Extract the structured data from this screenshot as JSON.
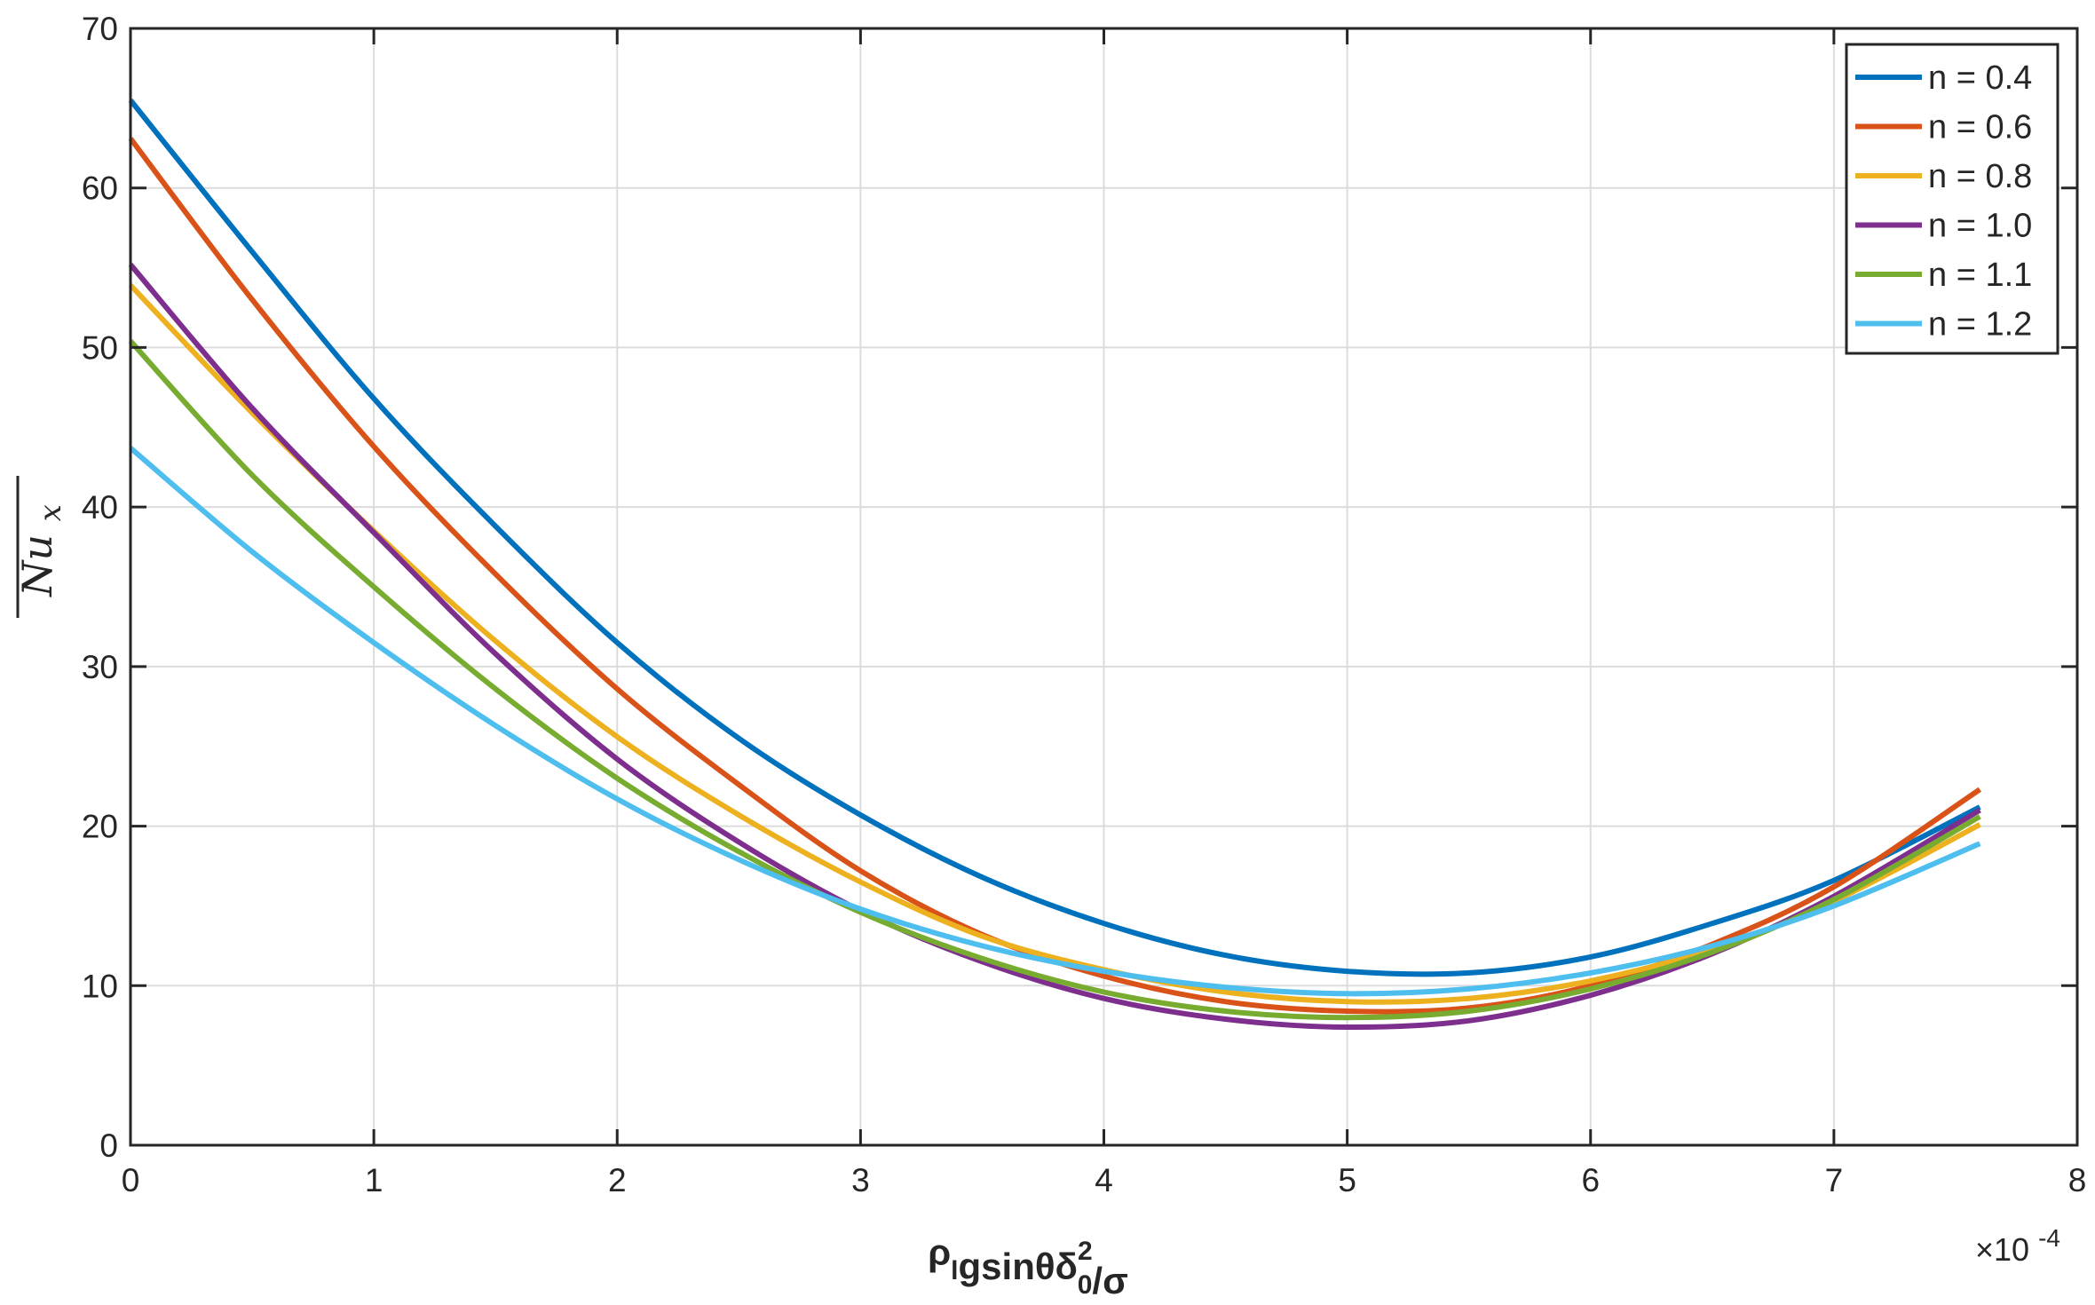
{
  "chart_data": {
    "type": "line",
    "title": "",
    "xlabel": {
      "parts": [
        {
          "text": "ρ"
        },
        {
          "text": "l",
          "sub": true
        },
        {
          "text": "gsinθδ"
        },
        {
          "text": "0",
          "sub": true,
          "sup": "2"
        },
        {
          "text": "/σ"
        }
      ]
    },
    "ylabel": "Nu",
    "ylabel_sub": "x",
    "x_multiplier_label": "×10",
    "x_multiplier_exponent": "-4",
    "xlim": [
      0,
      8
    ],
    "ylim": [
      0,
      70
    ],
    "x_ticks": [
      "0",
      "1",
      "2",
      "3",
      "4",
      "5",
      "6",
      "7",
      "8"
    ],
    "y_ticks": [
      "0",
      "10",
      "20",
      "30",
      "40",
      "50",
      "60",
      "70"
    ],
    "grid": true,
    "legend_position": "top-right",
    "series": [
      {
        "name": "n = 0.4",
        "color": "#0072BD",
        "x": [
          0,
          0.5,
          1,
          1.5,
          2,
          2.5,
          3,
          3.5,
          4,
          4.5,
          5,
          5.5,
          6,
          6.5,
          7,
          7.6
        ],
        "y": [
          65.5,
          56.0,
          46.8,
          38.8,
          31.5,
          25.5,
          20.7,
          16.8,
          13.9,
          11.9,
          10.9,
          10.8,
          11.8,
          13.9,
          16.6,
          21.2
        ]
      },
      {
        "name": "n = 0.6",
        "color": "#D95319",
        "x": [
          0,
          0.5,
          1,
          1.5,
          2,
          2.5,
          3,
          3.5,
          4,
          4.5,
          5,
          5.5,
          6,
          6.5,
          7,
          7.6
        ],
        "y": [
          63.1,
          53.0,
          43.8,
          35.8,
          28.6,
          22.6,
          17.2,
          13.2,
          10.6,
          9.0,
          8.4,
          8.6,
          10.0,
          12.6,
          16.2,
          22.3
        ]
      },
      {
        "name": "n = 0.8",
        "color": "#EDB120",
        "x": [
          0,
          0.5,
          1,
          1.5,
          2,
          2.5,
          3,
          3.5,
          4,
          4.5,
          5,
          5.5,
          6,
          6.5,
          7,
          7.6
        ],
        "y": [
          53.9,
          45.9,
          38.5,
          31.6,
          25.6,
          20.7,
          16.5,
          13.1,
          11.0,
          9.6,
          9.0,
          9.2,
          10.3,
          12.3,
          15.3,
          20.1
        ]
      },
      {
        "name": "n = 1.0",
        "color": "#7E2F8E",
        "x": [
          0,
          0.5,
          1,
          1.5,
          2,
          2.5,
          3,
          3.5,
          4,
          4.5,
          5,
          5.5,
          6,
          6.5,
          7,
          7.6
        ],
        "y": [
          55.2,
          46.2,
          38.4,
          30.8,
          24.2,
          19.0,
          14.7,
          11.5,
          9.2,
          7.9,
          7.4,
          7.8,
          9.4,
          12.0,
          15.6,
          21.0
        ]
      },
      {
        "name": "n = 1.1",
        "color": "#77AC30",
        "x": [
          0,
          0.5,
          1,
          1.5,
          2,
          2.5,
          3,
          3.5,
          4,
          4.5,
          5,
          5.5,
          6,
          6.5,
          7,
          7.6
        ],
        "y": [
          50.4,
          42.0,
          35.0,
          28.6,
          23.0,
          18.4,
          14.6,
          11.7,
          9.6,
          8.4,
          8.0,
          8.4,
          9.8,
          12.1,
          15.4,
          20.6
        ]
      },
      {
        "name": "n = 1.2",
        "color": "#4DBEEE",
        "x": [
          0,
          0.5,
          1,
          1.5,
          2,
          2.5,
          3,
          3.5,
          4,
          4.5,
          5,
          5.5,
          6,
          6.5,
          7,
          7.6
        ],
        "y": [
          43.7,
          37.2,
          31.5,
          26.3,
          21.7,
          17.9,
          14.8,
          12.5,
          10.9,
          9.9,
          9.5,
          9.8,
          10.8,
          12.5,
          15.0,
          18.9
        ]
      }
    ]
  }
}
